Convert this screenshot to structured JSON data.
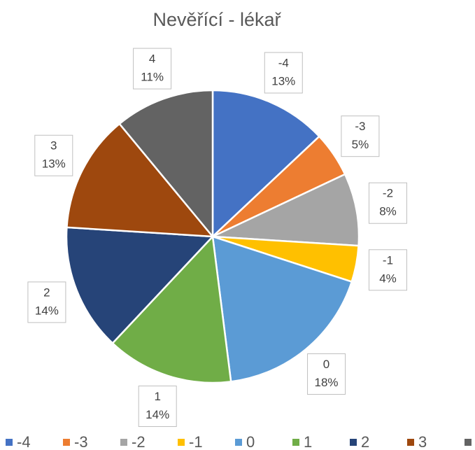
{
  "chart_data": {
    "type": "pie",
    "title": "Nevěřící - lékař",
    "categories": [
      "-4",
      "-3",
      "-2",
      "-1",
      "0",
      "1",
      "2",
      "3",
      "4"
    ],
    "values": [
      13,
      5,
      8,
      4,
      18,
      14,
      14,
      13,
      11
    ],
    "value_labels": [
      "13%",
      "5%",
      "8%",
      "4%",
      "18%",
      "14%",
      "14%",
      "13%",
      "11%"
    ],
    "colors": [
      "#4472c4",
      "#ed7d31",
      "#a5a5a5",
      "#ffc000",
      "#5b9bd5",
      "#70ad47",
      "#264478",
      "#9e480e",
      "#636363"
    ],
    "legend": "bottom"
  }
}
